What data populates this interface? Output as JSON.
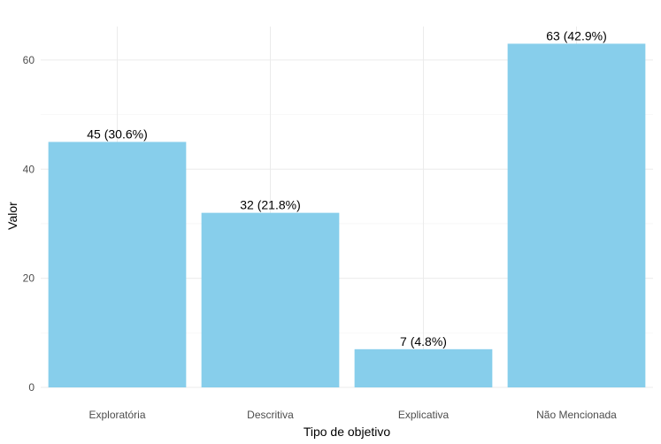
{
  "chart_data": {
    "type": "bar",
    "categories": [
      "Exploratória",
      "Descritiva",
      "Explicativa",
      "Não Mencionada"
    ],
    "values": [
      45,
      32,
      7,
      63
    ],
    "data_labels": [
      "45 (30.6%)",
      "32 (21.8%)",
      "7 (4.8%)",
      "63 (42.9%)"
    ],
    "xlabel": "Tipo de objetivo",
    "ylabel": "Valor",
    "ylim": [
      0,
      66.15
    ],
    "yticks": [
      0,
      20,
      40,
      60
    ],
    "grid": true,
    "bar_color": "#87CEEB"
  }
}
